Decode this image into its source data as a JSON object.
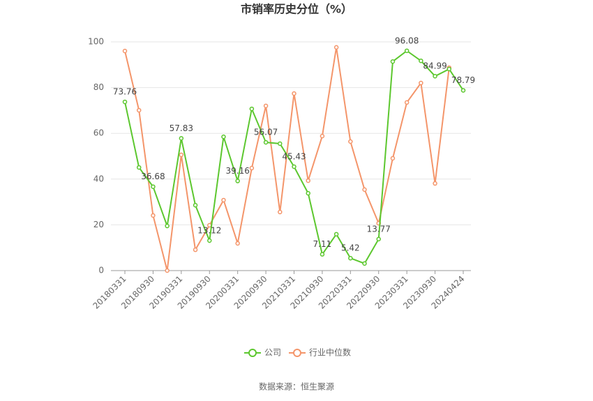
{
  "chart_data": {
    "type": "line",
    "title": "市销率历史分位（%）",
    "categories": [
      "20180331",
      null,
      "20180930",
      null,
      "20190331",
      null,
      "20190930",
      null,
      "20200331",
      null,
      "20200930",
      null,
      "20210331",
      null,
      "20210930",
      null,
      "20220331",
      null,
      "20220930",
      null,
      "20230331",
      null,
      "20230930",
      null,
      "20240424"
    ],
    "series": [
      {
        "name": "公司",
        "color": "#5cc72e",
        "values": [
          73.76,
          45.1,
          36.68,
          19.5,
          57.83,
          28.6,
          13.12,
          58.5,
          39.16,
          70.7,
          56.07,
          55.5,
          45.43,
          33.8,
          7.11,
          15.9,
          5.42,
          3.1,
          13.77,
          91.4,
          96.08,
          91.7,
          84.99,
          88.1,
          78.79
        ]
      },
      {
        "name": "行业中位数",
        "color": "#f4956a",
        "values": [
          96.0,
          70.1,
          24.1,
          0,
          50.6,
          9.1,
          19.8,
          30.8,
          11.9,
          44.8,
          72.0,
          25.6,
          77.4,
          39.3,
          58.8,
          97.6,
          56.4,
          35.4,
          20.7,
          49.1,
          73.5,
          82.0,
          38.1,
          88.7,
          null
        ]
      }
    ],
    "ylim": [
      0,
      100
    ],
    "yticks": [
      0,
      20,
      40,
      60,
      80,
      100
    ],
    "grid": true,
    "source": "数据来源：恒生聚源"
  }
}
